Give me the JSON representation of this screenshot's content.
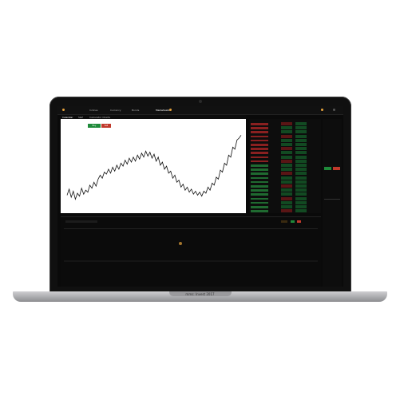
{
  "device": {
    "caption": "mms: Invest 2017"
  },
  "app": {
    "tabs": [
      "Indices",
      "Currency",
      "Bonds",
      "Marketwatch"
    ],
    "chart_tabs": [
      "Calendar",
      "S&P",
      "Calculator Charts"
    ],
    "buy_label": "Buy",
    "sell_label": "Sell",
    "colors": {
      "bg": "#0a0a0a",
      "up": "#1f8a3a",
      "down": "#c0392b",
      "accent": "#e6a23c"
    }
  },
  "chart_data": {
    "type": "line",
    "title": "",
    "xlabel": "",
    "ylabel": "",
    "y": [
      40,
      46,
      38,
      44,
      36,
      42,
      39,
      47,
      41,
      45,
      43,
      50,
      47,
      53,
      49,
      56,
      60,
      57,
      63,
      61,
      66,
      62,
      68,
      64,
      70,
      66,
      72,
      69,
      75,
      71,
      77,
      73,
      78,
      74,
      80,
      76,
      82,
      78,
      84,
      79,
      83,
      77,
      81,
      74,
      78,
      70,
      73,
      66,
      69,
      62,
      64,
      57,
      60,
      53,
      55,
      48,
      51,
      45,
      48,
      43,
      46,
      41,
      44,
      40,
      43,
      39,
      44,
      42,
      48,
      45,
      52,
      50,
      58,
      56,
      65,
      63,
      72,
      70,
      80,
      78,
      88,
      86,
      95,
      97,
      100
    ],
    "ylim": [
      30,
      105
    ],
    "grid": false
  }
}
